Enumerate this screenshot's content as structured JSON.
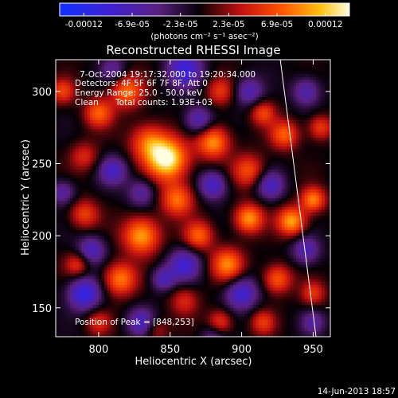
{
  "colorbar": {
    "tick_labels": [
      "-0.00012",
      "-6.9e-05",
      "-2.3e-05",
      "2.3e-05",
      "6.9e-05",
      "0.00012"
    ],
    "unit_label": "(photons cm⁻² s⁻¹ asec⁻²)"
  },
  "overlay": {
    "time_range": "7-Oct-2004 19:17:32.000 to 19:20:34.000",
    "detectors": "Detectors: 4F 5F 6F 7F 8F, Att 0",
    "energy": "Energy Range: 25.0 - 50.0 keV",
    "method": "Clean",
    "counts": "Total counts: 1.93E+03",
    "peak": "Position of Peak = [848,253]"
  },
  "footer": {
    "timestamp": "14-Jun-2013 18:57"
  },
  "chart_data": {
    "type": "heatmap",
    "title": "Reconstructed RHESSI Image",
    "xlabel": "Heliocentric X (arcsec)",
    "ylabel": "Heliocentric Y (arcsec)",
    "xlim": [
      770,
      962
    ],
    "ylim": [
      130,
      322
    ],
    "x_ticks": [
      800,
      850,
      900,
      950
    ],
    "y_ticks": [
      150,
      200,
      250,
      300
    ],
    "colormap": "RHESSI red-temperature (blue→purple→black→red→orange→yellow→white)",
    "color_range": [
      -0.00012,
      0.00012
    ],
    "peak_position": [
      848,
      253
    ],
    "limb_line": [
      [
        927,
        322
      ],
      [
        952,
        130
      ]
    ],
    "blobs": [
      {
        "x": 848,
        "y": 253,
        "v": 1.0,
        "s": 10
      },
      {
        "x": 835,
        "y": 265,
        "v": 0.55,
        "s": 9
      },
      {
        "x": 820,
        "y": 300,
        "v": 0.6,
        "s": 8
      },
      {
        "x": 800,
        "y": 285,
        "v": 0.55,
        "s": 7
      },
      {
        "x": 790,
        "y": 255,
        "v": 0.35,
        "s": 7
      },
      {
        "x": 880,
        "y": 265,
        "v": 0.7,
        "s": 8
      },
      {
        "x": 885,
        "y": 300,
        "v": 0.4,
        "s": 7
      },
      {
        "x": 905,
        "y": 245,
        "v": 0.5,
        "s": 8
      },
      {
        "x": 930,
        "y": 270,
        "v": 0.55,
        "s": 7
      },
      {
        "x": 955,
        "y": 275,
        "v": 0.45,
        "s": 6
      },
      {
        "x": 915,
        "y": 285,
        "v": 0.45,
        "s": 6
      },
      {
        "x": 830,
        "y": 200,
        "v": 0.75,
        "s": 9
      },
      {
        "x": 815,
        "y": 170,
        "v": 0.65,
        "s": 8
      },
      {
        "x": 790,
        "y": 215,
        "v": 0.45,
        "s": 7
      },
      {
        "x": 785,
        "y": 180,
        "v": 0.4,
        "s": 6
      },
      {
        "x": 855,
        "y": 225,
        "v": 0.6,
        "s": 8
      },
      {
        "x": 870,
        "y": 200,
        "v": 0.55,
        "s": 7
      },
      {
        "x": 890,
        "y": 180,
        "v": 0.65,
        "s": 8
      },
      {
        "x": 905,
        "y": 212,
        "v": 0.7,
        "s": 7
      },
      {
        "x": 935,
        "y": 210,
        "v": 0.75,
        "s": 7
      },
      {
        "x": 950,
        "y": 225,
        "v": 0.65,
        "s": 6
      },
      {
        "x": 925,
        "y": 170,
        "v": 0.55,
        "s": 7
      },
      {
        "x": 950,
        "y": 160,
        "v": 0.4,
        "s": 6
      },
      {
        "x": 860,
        "y": 155,
        "v": 0.35,
        "s": 7
      },
      {
        "x": 885,
        "y": 140,
        "v": 0.45,
        "s": 6
      },
      {
        "x": 915,
        "y": 140,
        "v": 0.4,
        "s": 6
      },
      {
        "x": 800,
        "y": 140,
        "v": 0.35,
        "s": 6
      },
      {
        "x": 840,
        "y": 135,
        "v": 0.3,
        "s": 6
      },
      {
        "x": 775,
        "y": 300,
        "v": 0.45,
        "s": 6
      },
      {
        "x": 860,
        "y": 315,
        "v": -0.6,
        "s": 9
      },
      {
        "x": 790,
        "y": 160,
        "v": -0.7,
        "s": 8
      },
      {
        "x": 900,
        "y": 160,
        "v": -0.6,
        "s": 8
      },
      {
        "x": 860,
        "y": 180,
        "v": -0.55,
        "s": 8
      },
      {
        "x": 945,
        "y": 190,
        "v": -0.45,
        "s": 7
      },
      {
        "x": 830,
        "y": 230,
        "v": -0.4,
        "s": 7
      },
      {
        "x": 880,
        "y": 235,
        "v": -0.55,
        "s": 7
      },
      {
        "x": 920,
        "y": 235,
        "v": -0.5,
        "s": 7
      },
      {
        "x": 810,
        "y": 245,
        "v": -0.5,
        "s": 7
      },
      {
        "x": 795,
        "y": 190,
        "v": -0.5,
        "s": 7
      },
      {
        "x": 845,
        "y": 170,
        "v": -0.45,
        "s": 6
      },
      {
        "x": 905,
        "y": 300,
        "v": -0.45,
        "s": 7
      },
      {
        "x": 945,
        "y": 300,
        "v": -0.45,
        "s": 7
      },
      {
        "x": 870,
        "y": 280,
        "v": -0.5,
        "s": 7
      },
      {
        "x": 810,
        "y": 315,
        "v": -0.35,
        "s": 6
      },
      {
        "x": 950,
        "y": 140,
        "v": -0.35,
        "s": 6
      },
      {
        "x": 830,
        "y": 140,
        "v": -0.5,
        "s": 7
      },
      {
        "x": 775,
        "y": 230,
        "v": -0.4,
        "s": 6
      },
      {
        "x": 880,
        "y": 130,
        "v": -0.3,
        "s": 6
      }
    ]
  }
}
